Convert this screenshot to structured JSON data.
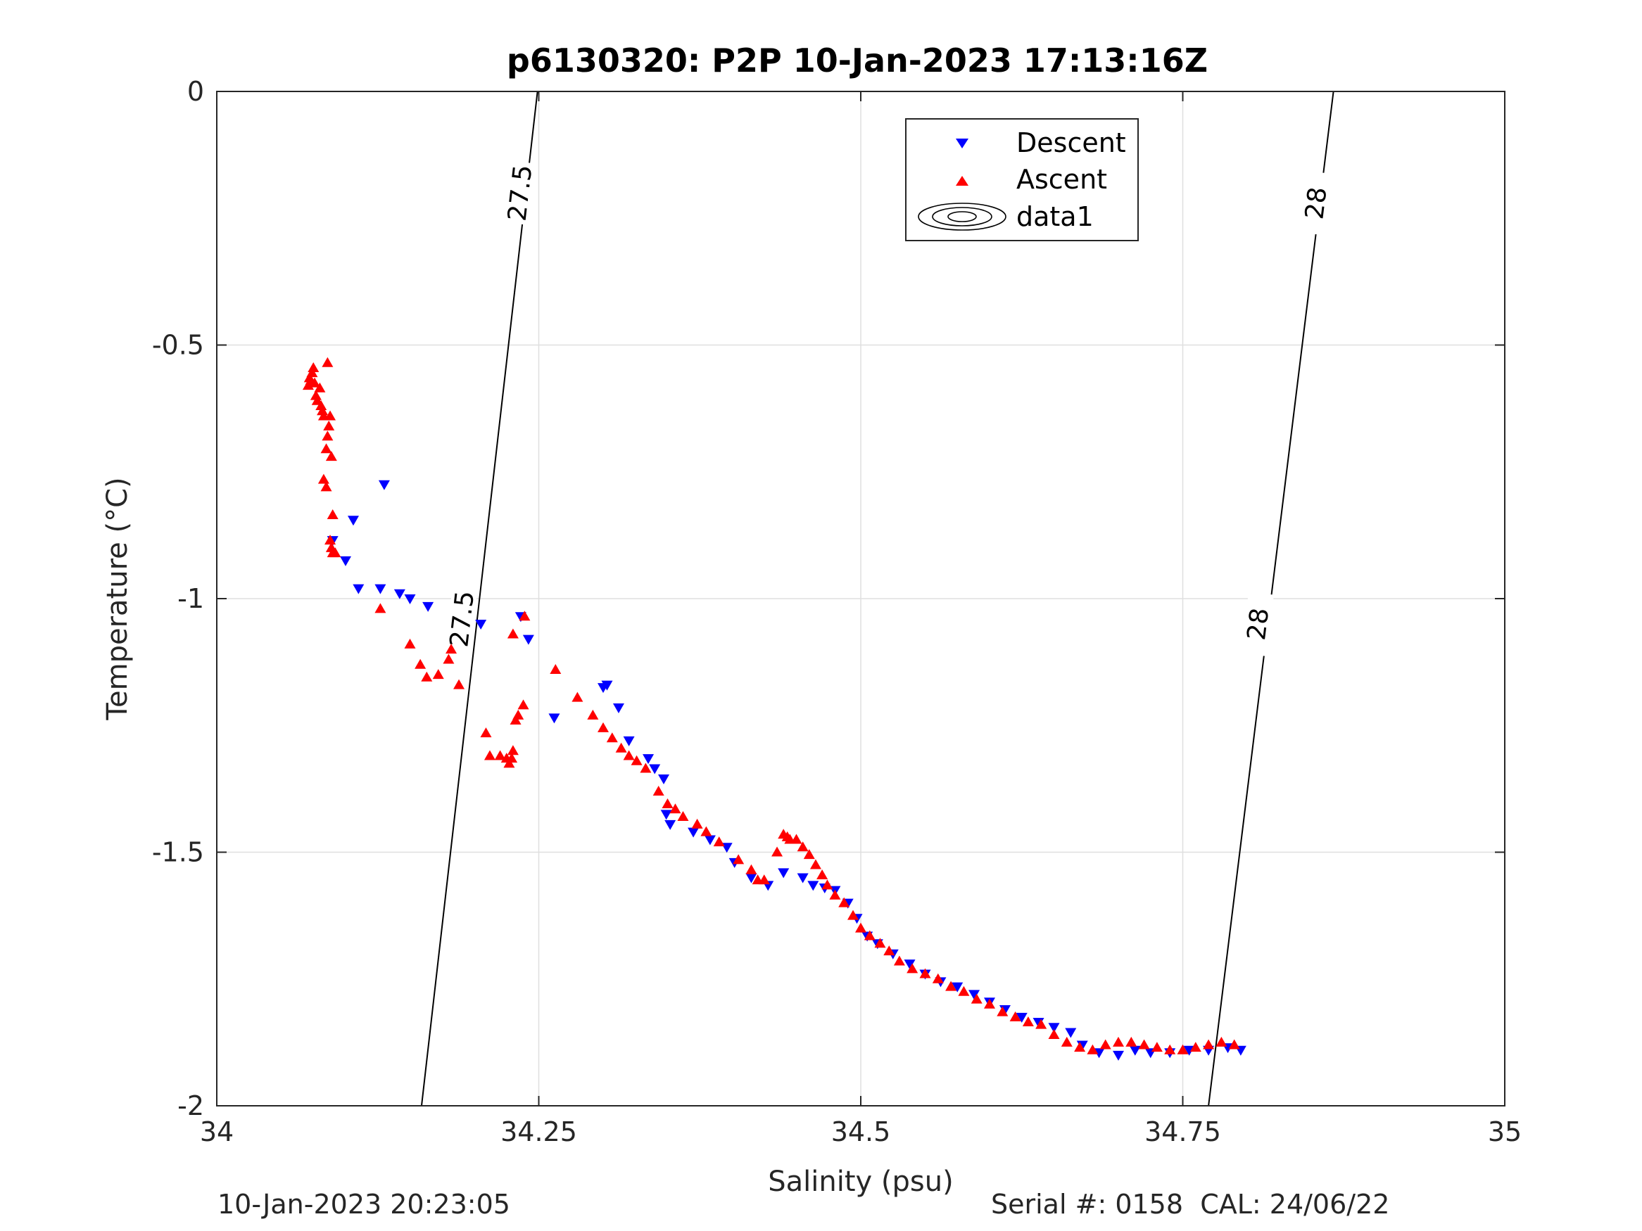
{
  "chart_data": {
    "type": "scatter",
    "title": "p6130320: P2P 10-Jan-2023 17:13:16Z",
    "xlabel": "Salinity (psu)",
    "ylabel": "Temperature (°C)",
    "xlim": [
      34,
      35
    ],
    "ylim": [
      -2,
      0
    ],
    "xticks": [
      34,
      34.25,
      34.5,
      34.75,
      35
    ],
    "xtick_labels": [
      "34",
      "34.25",
      "34.5",
      "34.75",
      "35"
    ],
    "yticks": [
      0,
      -0.5,
      -1,
      -1.5,
      -2
    ],
    "ytick_labels": [
      "0",
      "-0.5",
      "-1",
      "-1.5",
      "-2"
    ],
    "grid": true,
    "legend_position": "top-right",
    "legend": [
      {
        "label": "Descent",
        "marker": "triangle-down",
        "color": "#0000ff"
      },
      {
        "label": "Ascent",
        "marker": "triangle-up",
        "color": "#ff0000"
      },
      {
        "label": "data1",
        "marker": "contour",
        "color": "#000000"
      }
    ],
    "contours": [
      {
        "level": 27.5,
        "label": "27.5",
        "points": [
          [
            34.159,
            -2.0
          ],
          [
            34.249,
            0.0
          ]
        ],
        "label_positions": [
          [
            34.235,
            -0.2
          ],
          [
            34.19,
            -1.04
          ]
        ]
      },
      {
        "level": 28.0,
        "label": "28",
        "points": [
          [
            34.77,
            -2.0
          ],
          [
            34.867,
            0.0
          ]
        ],
        "label_positions": [
          [
            34.853,
            -0.22
          ],
          [
            34.808,
            -1.05
          ]
        ]
      }
    ],
    "series": [
      {
        "name": "Descent",
        "marker": "triangle-down",
        "color": "#0000ff",
        "points": [
          [
            34.13,
            -0.775
          ],
          [
            34.106,
            -0.845
          ],
          [
            34.09,
            -0.885
          ],
          [
            34.1,
            -0.925
          ],
          [
            34.11,
            -0.98
          ],
          [
            34.127,
            -0.98
          ],
          [
            34.142,
            -0.99
          ],
          [
            34.15,
            -1.0
          ],
          [
            34.164,
            -1.015
          ],
          [
            34.205,
            -1.05
          ],
          [
            34.236,
            -1.035
          ],
          [
            34.242,
            -1.08
          ],
          [
            34.262,
            -1.235
          ],
          [
            34.3,
            -1.175
          ],
          [
            34.303,
            -1.17
          ],
          [
            34.312,
            -1.215
          ],
          [
            34.32,
            -1.28
          ],
          [
            34.335,
            -1.315
          ],
          [
            34.34,
            -1.335
          ],
          [
            34.347,
            -1.355
          ],
          [
            34.349,
            -1.425
          ],
          [
            34.352,
            -1.445
          ],
          [
            34.37,
            -1.46
          ],
          [
            34.383,
            -1.475
          ],
          [
            34.396,
            -1.49
          ],
          [
            34.402,
            -1.52
          ],
          [
            34.415,
            -1.55
          ],
          [
            34.428,
            -1.565
          ],
          [
            34.44,
            -1.54
          ],
          [
            34.455,
            -1.55
          ],
          [
            34.463,
            -1.565
          ],
          [
            34.472,
            -1.57
          ],
          [
            34.48,
            -1.575
          ],
          [
            34.49,
            -1.6
          ],
          [
            34.497,
            -1.63
          ],
          [
            34.505,
            -1.665
          ],
          [
            34.513,
            -1.68
          ],
          [
            34.525,
            -1.7
          ],
          [
            34.538,
            -1.72
          ],
          [
            34.55,
            -1.74
          ],
          [
            34.562,
            -1.755
          ],
          [
            34.575,
            -1.765
          ],
          [
            34.588,
            -1.78
          ],
          [
            34.6,
            -1.795
          ],
          [
            34.612,
            -1.81
          ],
          [
            34.625,
            -1.825
          ],
          [
            34.638,
            -1.835
          ],
          [
            34.65,
            -1.845
          ],
          [
            34.663,
            -1.855
          ],
          [
            34.672,
            -1.88
          ],
          [
            34.685,
            -1.895
          ],
          [
            34.7,
            -1.9
          ],
          [
            34.713,
            -1.89
          ],
          [
            34.725,
            -1.895
          ],
          [
            34.74,
            -1.895
          ],
          [
            34.755,
            -1.89
          ],
          [
            34.77,
            -1.89
          ],
          [
            34.785,
            -1.885
          ],
          [
            34.795,
            -1.89
          ]
        ]
      },
      {
        "name": "Ascent",
        "marker": "triangle-up",
        "color": "#ff0000",
        "points": [
          [
            34.071,
            -0.58
          ],
          [
            34.072,
            -0.565
          ],
          [
            34.073,
            -0.57
          ],
          [
            34.074,
            -0.555
          ],
          [
            34.075,
            -0.545
          ],
          [
            34.076,
            -0.575
          ],
          [
            34.077,
            -0.6
          ],
          [
            34.078,
            -0.61
          ],
          [
            34.08,
            -0.585
          ],
          [
            34.081,
            -0.62
          ],
          [
            34.082,
            -0.63
          ],
          [
            34.083,
            -0.64
          ],
          [
            34.086,
            -0.535
          ],
          [
            34.086,
            -0.68
          ],
          [
            34.087,
            -0.66
          ],
          [
            34.088,
            -0.64
          ],
          [
            34.085,
            -0.705
          ],
          [
            34.083,
            -0.765
          ],
          [
            34.085,
            -0.78
          ],
          [
            34.089,
            -0.72
          ],
          [
            34.09,
            -0.835
          ],
          [
            34.088,
            -0.885
          ],
          [
            34.089,
            -0.9
          ],
          [
            34.09,
            -0.91
          ],
          [
            34.092,
            -0.91
          ],
          [
            34.127,
            -1.02
          ],
          [
            34.15,
            -1.09
          ],
          [
            34.158,
            -1.13
          ],
          [
            34.163,
            -1.155
          ],
          [
            34.172,
            -1.15
          ],
          [
            34.18,
            -1.12
          ],
          [
            34.182,
            -1.1
          ],
          [
            34.188,
            -1.17
          ],
          [
            34.209,
            -1.265
          ],
          [
            34.212,
            -1.31
          ],
          [
            34.22,
            -1.31
          ],
          [
            34.225,
            -1.315
          ],
          [
            34.227,
            -1.325
          ],
          [
            34.229,
            -1.315
          ],
          [
            34.23,
            -1.3
          ],
          [
            34.23,
            -1.07
          ],
          [
            34.232,
            -1.24
          ],
          [
            34.234,
            -1.23
          ],
          [
            34.238,
            -1.21
          ],
          [
            34.239,
            -1.035
          ],
          [
            34.263,
            -1.14
          ],
          [
            34.28,
            -1.195
          ],
          [
            34.292,
            -1.23
          ],
          [
            34.3,
            -1.255
          ],
          [
            34.307,
            -1.275
          ],
          [
            34.314,
            -1.295
          ],
          [
            34.32,
            -1.31
          ],
          [
            34.326,
            -1.32
          ],
          [
            34.333,
            -1.335
          ],
          [
            34.343,
            -1.38
          ],
          [
            34.35,
            -1.405
          ],
          [
            34.356,
            -1.415
          ],
          [
            34.362,
            -1.43
          ],
          [
            34.373,
            -1.445
          ],
          [
            34.38,
            -1.46
          ],
          [
            34.39,
            -1.48
          ],
          [
            34.405,
            -1.515
          ],
          [
            34.415,
            -1.535
          ],
          [
            34.42,
            -1.555
          ],
          [
            34.425,
            -1.555
          ],
          [
            34.435,
            -1.5
          ],
          [
            34.44,
            -1.465
          ],
          [
            34.443,
            -1.47
          ],
          [
            34.445,
            -1.475
          ],
          [
            34.45,
            -1.475
          ],
          [
            34.455,
            -1.49
          ],
          [
            34.46,
            -1.505
          ],
          [
            34.465,
            -1.525
          ],
          [
            34.47,
            -1.545
          ],
          [
            34.474,
            -1.565
          ],
          [
            34.48,
            -1.585
          ],
          [
            34.487,
            -1.6
          ],
          [
            34.494,
            -1.625
          ],
          [
            34.5,
            -1.65
          ],
          [
            34.507,
            -1.665
          ],
          [
            34.515,
            -1.68
          ],
          [
            34.522,
            -1.695
          ],
          [
            34.53,
            -1.715
          ],
          [
            34.54,
            -1.73
          ],
          [
            34.55,
            -1.74
          ],
          [
            34.56,
            -1.75
          ],
          [
            34.57,
            -1.765
          ],
          [
            34.58,
            -1.775
          ],
          [
            34.59,
            -1.79
          ],
          [
            34.6,
            -1.8
          ],
          [
            34.61,
            -1.815
          ],
          [
            34.62,
            -1.825
          ],
          [
            34.63,
            -1.835
          ],
          [
            34.64,
            -1.84
          ],
          [
            34.65,
            -1.86
          ],
          [
            34.66,
            -1.875
          ],
          [
            34.67,
            -1.885
          ],
          [
            34.68,
            -1.89
          ],
          [
            34.69,
            -1.88
          ],
          [
            34.7,
            -1.875
          ],
          [
            34.71,
            -1.875
          ],
          [
            34.72,
            -1.88
          ],
          [
            34.73,
            -1.885
          ],
          [
            34.74,
            -1.89
          ],
          [
            34.75,
            -1.89
          ],
          [
            34.76,
            -1.885
          ],
          [
            34.77,
            -1.88
          ],
          [
            34.78,
            -1.875
          ],
          [
            34.79,
            -1.88
          ]
        ]
      }
    ]
  },
  "footer": {
    "left": "10-Jan-2023 20:23:05",
    "right": "Serial #: 0158  CAL: 24/06/22"
  }
}
